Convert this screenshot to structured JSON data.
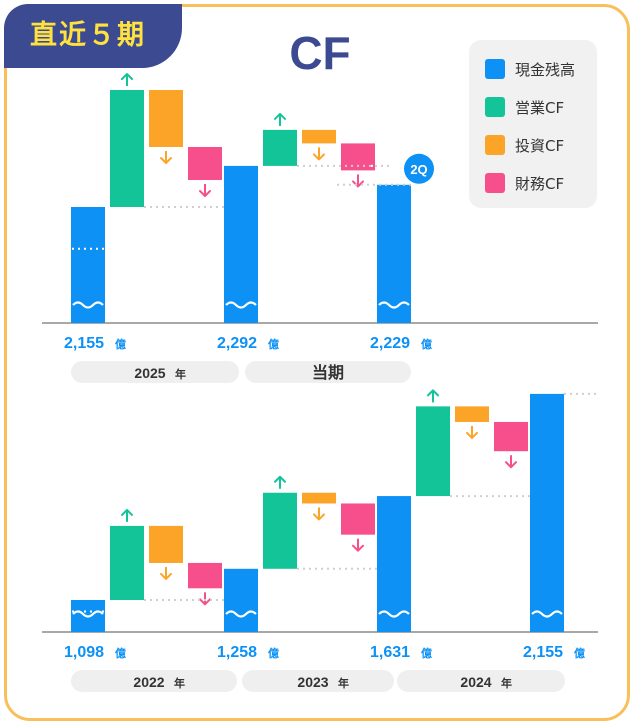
{
  "header": {
    "badge": "直近５期",
    "title": "CF"
  },
  "legend": [
    {
      "label": "現金残高",
      "color": "#0d91f5"
    },
    {
      "label": "営業CF",
      "color": "#13c499"
    },
    {
      "label": "投資CF",
      "color": "#fba428"
    },
    {
      "label": "財務CF",
      "color": "#f74f8c"
    }
  ],
  "unit_suffix": "億",
  "chart_data": [
    {
      "type": "waterfall",
      "title": "CF",
      "balance_labels": [
        "2,155",
        "2,292",
        "2,229"
      ],
      "balances": [
        2155,
        2292,
        2229
      ],
      "steps": [
        {
          "operating": 390,
          "investing": -190,
          "financing": -110
        },
        {
          "operating": 120,
          "investing": -45,
          "financing": -90
        }
      ],
      "current_badge": "2Q",
      "periods": [
        {
          "label": "2025",
          "suffix": "年"
        },
        {
          "label": "当期",
          "suffix": ""
        }
      ]
    },
    {
      "type": "waterfall",
      "title": "CF",
      "balance_labels": [
        "1,098",
        "1,258",
        "1,631",
        "2,155"
      ],
      "balances": [
        1098,
        1258,
        1631,
        2155
      ],
      "steps": [
        {
          "operating": 380,
          "investing": -190,
          "financing": -130
        },
        {
          "operating": 390,
          "investing": -55,
          "financing": -160
        },
        {
          "operating": 460,
          "investing": -80,
          "financing": -150
        }
      ],
      "periods": [
        {
          "label": "2022",
          "suffix": "年"
        },
        {
          "label": "2023",
          "suffix": "年"
        },
        {
          "label": "2024",
          "suffix": "年"
        }
      ]
    }
  ]
}
